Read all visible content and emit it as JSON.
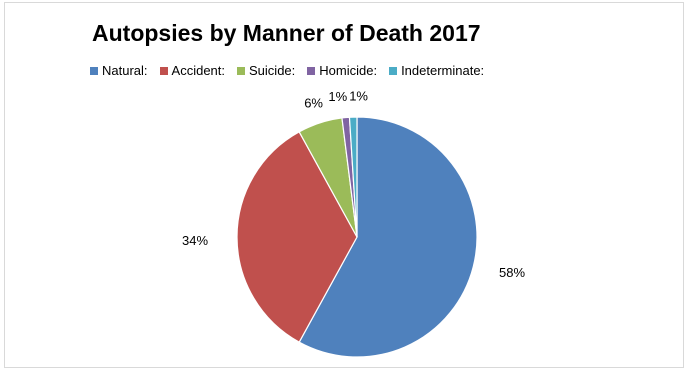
{
  "chart_data": {
    "type": "pie",
    "title": "Autopsies by Manner of Death 2017",
    "legend_position": "top",
    "categories": [
      "Natural:",
      "Accident:",
      "Suicide:",
      "Homicide:",
      "Indeterminate:"
    ],
    "values": [
      58,
      34,
      6,
      1,
      1
    ],
    "data_labels": [
      "58%",
      "34%",
      "6%",
      "1%",
      "1%"
    ],
    "colors": [
      "#4f81bd",
      "#c0504d",
      "#9bbb59",
      "#8064a2",
      "#4bacc6"
    ]
  }
}
